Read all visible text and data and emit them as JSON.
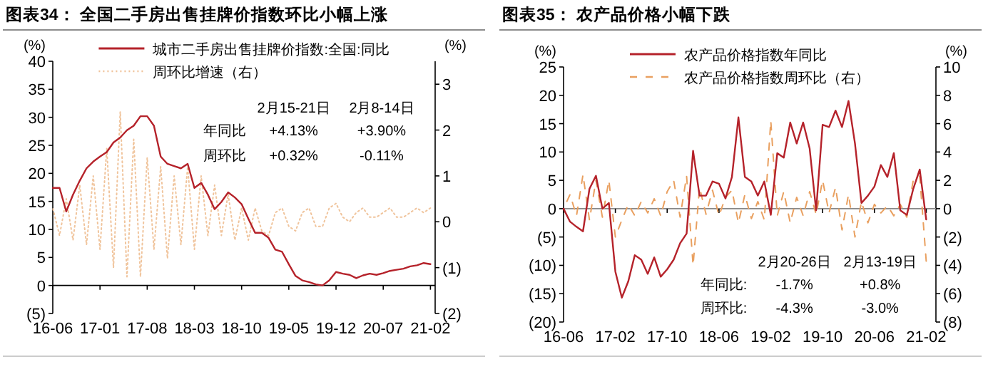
{
  "chart_data": [
    {
      "type": "line",
      "title": "图表34：  全国二手房出售挂牌价指数环比小幅上涨",
      "ylabel": "(%)",
      "y2label": "(%)",
      "legend": "top",
      "grid": false,
      "categories": [
        "16-06",
        null,
        null,
        null,
        null,
        null,
        null,
        "17-01",
        null,
        null,
        null,
        null,
        null,
        null,
        "17-08",
        null,
        null,
        null,
        null,
        null,
        null,
        "18-03",
        null,
        null,
        null,
        null,
        null,
        null,
        "18-10",
        null,
        null,
        null,
        null,
        null,
        null,
        "19-05",
        null,
        null,
        null,
        null,
        null,
        null,
        "19-12",
        null,
        null,
        null,
        null,
        null,
        null,
        "20-07",
        null,
        null,
        null,
        null,
        null,
        null,
        "21-02"
      ],
      "ylim": [
        -5,
        40
      ],
      "yticks": [
        {
          "value": -5,
          "label": "(5)"
        },
        0,
        5,
        10,
        15,
        20,
        25,
        30,
        35,
        40
      ],
      "y2lim": [
        -2,
        3.5
      ],
      "y2ticks": [
        {
          "value": -2,
          "label": "(2)"
        },
        {
          "value": -1,
          "label": "(1)"
        },
        0,
        1,
        2,
        3
      ],
      "annotations": [
        "2月15-21日",
        "2月8-14日",
        "年同比",
        "+4.13%",
        "+3.90%",
        "周环比",
        "+0.32%",
        "-0.11%"
      ],
      "series": [
        {
          "name": "城市二手房出售挂牌价指数:全国:同比",
          "color": "#b5222a",
          "line_style": "solid",
          "values": [
            17.4,
            17.4,
            13.2,
            16.2,
            18.7,
            20.9,
            22.1,
            23,
            23.8,
            25.5,
            26.4,
            27.7,
            28.5,
            30.2,
            30.2,
            28.5,
            23,
            21.7,
            21.3,
            20.9,
            21.7,
            17.4,
            18.3,
            16.2,
            13.6,
            14.9,
            16.6,
            15.7,
            14.5,
            11.9,
            9.4,
            9.4,
            8.5,
            6.4,
            6.0,
            3.8,
            1.7,
            0.9,
            0.6,
            0.2,
            0,
            0.9,
            2.4,
            2.1,
            1.9,
            1.3,
            1.8,
            2.1,
            1.9,
            2.2,
            2.6,
            2.8,
            3.0,
            3.4,
            3.6,
            4.0,
            3.8
          ]
        },
        {
          "name": "周环比增速（右）",
          "color": "#f0c49c",
          "line_style": "dotted",
          "axis": "y2",
          "values": [
            0.3,
            -0.3,
            0.5,
            -0.4,
            0.8,
            -0.5,
            1.0,
            -0.6,
            1.6,
            -1.0,
            2.4,
            -1.2,
            1.8,
            -1.2,
            1.4,
            -0.6,
            1.2,
            -0.8,
            1.0,
            -0.5,
            1.2,
            -0.6,
            1.0,
            -0.3,
            0.8,
            -0.3,
            0.6,
            -0.4,
            0.3,
            -0.4,
            0.3,
            -0.2,
            -0.3,
            0.2,
            0.3,
            -0.1,
            -0.2,
            0.2,
            0.3,
            -0.1,
            -0.1,
            0.3,
            0.4,
            0.1,
            0.0,
            0.2,
            0.3,
            0.1,
            0.1,
            0.2,
            0.3,
            0.1,
            0.1,
            0.2,
            0.3,
            0.2,
            0.3
          ]
        }
      ]
    },
    {
      "type": "line",
      "title": "图表35：  农产品价格小幅下跌",
      "ylabel": "(%)",
      "y2label": "(%)",
      "legend": "top",
      "grid": false,
      "categories": [
        "16-06",
        null,
        null,
        null,
        null,
        null,
        null,
        null,
        "17-02",
        null,
        null,
        null,
        null,
        null,
        null,
        null,
        "17-10",
        null,
        null,
        null,
        null,
        null,
        null,
        null,
        "18-06",
        null,
        null,
        null,
        null,
        null,
        null,
        null,
        "19-02",
        null,
        null,
        null,
        null,
        null,
        null,
        null,
        "19-10",
        null,
        null,
        null,
        null,
        null,
        null,
        null,
        "20-06",
        null,
        null,
        null,
        null,
        null,
        null,
        null,
        "21-02"
      ],
      "ylim": [
        -20,
        25
      ],
      "yticks": [
        {
          "value": -20,
          "label": "(20)"
        },
        {
          "value": -15,
          "label": "(15)"
        },
        {
          "value": -10,
          "label": "(10)"
        },
        {
          "value": -5,
          "label": "(5)"
        },
        0,
        5,
        10,
        15,
        20,
        25
      ],
      "y2lim": [
        -8,
        10
      ],
      "y2ticks": [
        {
          "value": -8,
          "label": "(8)"
        },
        {
          "value": -6,
          "label": "(6)"
        },
        {
          "value": -4,
          "label": "(4)"
        },
        {
          "value": -2,
          "label": "(2)"
        },
        0,
        2,
        4,
        6,
        8,
        10
      ],
      "ref_lines": [
        {
          "axis": "y",
          "value": 0,
          "color": "#888888"
        }
      ],
      "annotations": [
        "2月20-26日",
        "2月13-19日",
        "年同比:",
        "-1.7%",
        "+0.8%",
        "周环比:",
        "-4.3%",
        "-3.0%"
      ],
      "series": [
        {
          "name": "农产品价格指数年同比",
          "color": "#b5222a",
          "line_style": "solid",
          "values": [
            0,
            -2.3,
            -3.2,
            -4.0,
            3.5,
            5.8,
            0,
            1.0,
            -11.1,
            -15.7,
            -12.8,
            -8.2,
            -9.0,
            -11.5,
            -8.6,
            -12.0,
            -10.7,
            -9.0,
            -6.1,
            -4.4,
            10.2,
            2.3,
            2.3,
            4.8,
            4.4,
            1.8,
            5.6,
            16.1,
            5.6,
            4.8,
            2.3,
            4.8,
            -1.1,
            9.8,
            9.0,
            15.2,
            11.5,
            15.2,
            10.6,
            -0.3,
            14.8,
            14.4,
            17.3,
            14.4,
            19.0,
            11.5,
            1.0,
            2.3,
            3.9,
            7.7,
            5.6,
            9.8,
            -0.3,
            -1.1,
            3.5,
            6.9,
            -1.9
          ]
        },
        {
          "name": "农产品价格指数周环比（右）",
          "color": "#e9a060",
          "line_style": "dashed",
          "axis": "y2",
          "values": [
            0,
            1.0,
            -0.5,
            2.4,
            -0.8,
            2.0,
            -0.6,
            2.0,
            -2.0,
            -0.8,
            0.3,
            -0.5,
            0.5,
            -0.3,
            0.7,
            -0.5,
            1.2,
            2.0,
            -0.6,
            2.3,
            -4.0,
            1.5,
            -0.4,
            1.3,
            -0.5,
            0.8,
            1.3,
            -1.0,
            1.0,
            -0.7,
            0.5,
            -0.8,
            6.2,
            -0.5,
            1.2,
            -1.0,
            0.8,
            -0.5,
            1.2,
            -0.4,
            2.0,
            -0.3,
            1.5,
            -1.5,
            1.0,
            -2.0,
            0.5,
            -1.0,
            0.3,
            -0.3,
            0.2,
            -0.5,
            0.3,
            -0.6,
            2.0,
            2.3,
            -3.7
          ]
        }
      ]
    }
  ]
}
